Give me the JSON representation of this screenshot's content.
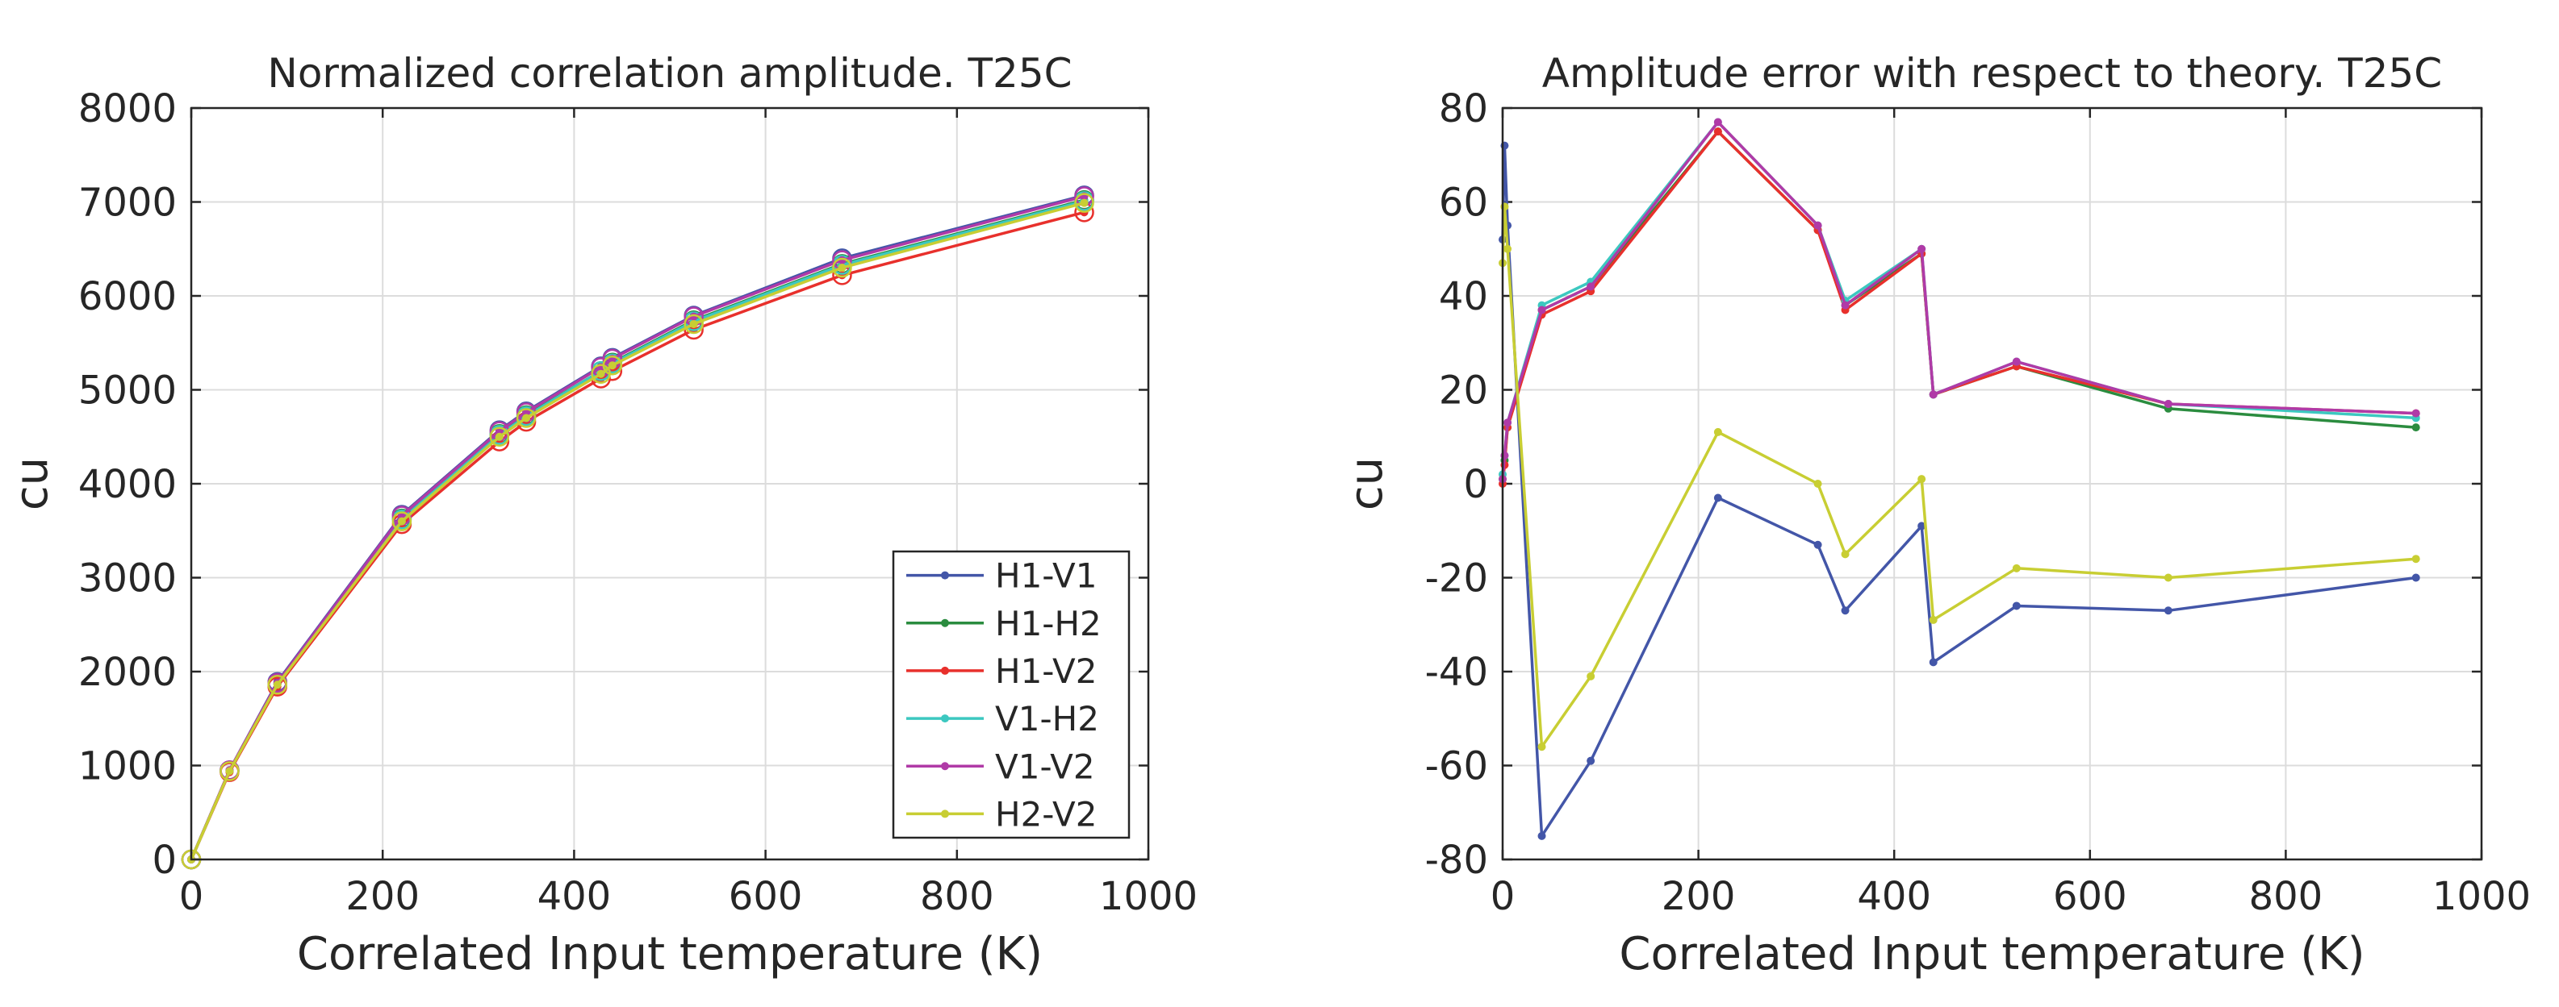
{
  "chart_data": [
    {
      "type": "line",
      "title": "Normalized correlation amplitude. T25C",
      "xlabel": "Correlated Input temperature (K)",
      "ylabel": "cu",
      "xlim": [
        0,
        1000
      ],
      "ylim": [
        0,
        8000
      ],
      "xticks": [
        "0",
        "200",
        "400",
        "600",
        "800",
        "1000"
      ],
      "yticks": [
        "0",
        "1000",
        "2000",
        "3000",
        "4000",
        "5000",
        "6000",
        "7000",
        "8000"
      ],
      "grid": true,
      "legend_position": "bottom-right",
      "x": [
        0,
        40,
        90,
        220,
        322,
        350,
        428,
        440,
        525,
        680,
        933
      ],
      "series": [
        {
          "name": "H1-V1",
          "color": "#4356a8",
          "values": [
            0,
            950,
            1890,
            3670,
            4570,
            4770,
            5250,
            5340,
            5790,
            6400,
            7070
          ]
        },
        {
          "name": "H1-H2",
          "color": "#2b8c3f",
          "values": [
            0,
            945,
            1870,
            3630,
            4530,
            4730,
            5200,
            5290,
            5740,
            6340,
            7020
          ]
        },
        {
          "name": "H1-V2",
          "color": "#e8302c",
          "values": [
            0,
            930,
            1840,
            3570,
            4450,
            4660,
            5120,
            5200,
            5640,
            6220,
            6890
          ]
        },
        {
          "name": "V1-H2",
          "color": "#3cc8c0",
          "values": [
            0,
            945,
            1870,
            3620,
            4520,
            4720,
            5200,
            5280,
            5730,
            6330,
            7010
          ]
        },
        {
          "name": "V1-V2",
          "color": "#b03aa7",
          "values": [
            0,
            950,
            1880,
            3660,
            4560,
            4760,
            5240,
            5330,
            5780,
            6380,
            7060
          ]
        },
        {
          "name": "H2-V2",
          "color": "#c8ce33",
          "values": [
            0,
            940,
            1860,
            3600,
            4500,
            4700,
            5170,
            5260,
            5700,
            6300,
            6990
          ]
        }
      ]
    },
    {
      "type": "line",
      "title": "Amplitude error with respect to theory. T25C",
      "xlabel": "Correlated Input temperature (K)",
      "ylabel": "cu",
      "xlim": [
        0,
        1000
      ],
      "ylim": [
        -80,
        80
      ],
      "xticks": [
        "0",
        "200",
        "400",
        "600",
        "800",
        "1000"
      ],
      "yticks": [
        "-80",
        "-60",
        "-40",
        "-20",
        "0",
        "20",
        "40",
        "60",
        "80"
      ],
      "grid": true,
      "series": [
        {
          "name": "H1-V1",
          "color": "#4356a8",
          "x": [
            0,
            2,
            5,
            40,
            90,
            220,
            322,
            350,
            428,
            440,
            525,
            680,
            933
          ],
          "values": [
            52,
            72,
            55,
            -75,
            -59,
            -3,
            -13,
            -27,
            -9,
            -38,
            -26,
            -27,
            -20
          ]
        },
        {
          "name": "H1-H2",
          "color": "#2b8c3f",
          "x": [
            0,
            2,
            5,
            40,
            90,
            220,
            322,
            350,
            428,
            440,
            525,
            680,
            933
          ],
          "values": [
            1,
            5,
            12,
            37,
            42,
            75,
            54,
            38,
            49,
            19,
            25,
            16,
            12
          ]
        },
        {
          "name": "H1-V2",
          "color": "#e8302c",
          "x": [
            0,
            2,
            5,
            40,
            90,
            220,
            322,
            350,
            428,
            440,
            525,
            680,
            933
          ],
          "values": [
            0,
            4,
            12,
            36,
            41,
            75,
            54,
            37,
            49,
            19,
            25,
            17,
            15
          ]
        },
        {
          "name": "V1-H2",
          "color": "#3cc8c0",
          "x": [
            0,
            2,
            5,
            40,
            90,
            220,
            322,
            350,
            428,
            440,
            525,
            680,
            933
          ],
          "values": [
            2,
            6,
            13,
            38,
            43,
            77,
            55,
            39,
            50,
            19,
            26,
            17,
            14
          ]
        },
        {
          "name": "V1-V2",
          "color": "#b03aa7",
          "x": [
            0,
            2,
            5,
            40,
            90,
            220,
            322,
            350,
            428,
            440,
            525,
            680,
            933
          ],
          "values": [
            1,
            6,
            13,
            37,
            42,
            77,
            55,
            38,
            50,
            19,
            26,
            17,
            15
          ]
        },
        {
          "name": "H2-V2",
          "color": "#c8ce33",
          "x": [
            0,
            2,
            5,
            40,
            90,
            220,
            322,
            350,
            428,
            440,
            525,
            680,
            933
          ],
          "values": [
            47,
            59,
            50,
            -56,
            -41,
            11,
            0,
            -15,
            1,
            -29,
            -18,
            -20,
            -16
          ]
        }
      ]
    }
  ]
}
